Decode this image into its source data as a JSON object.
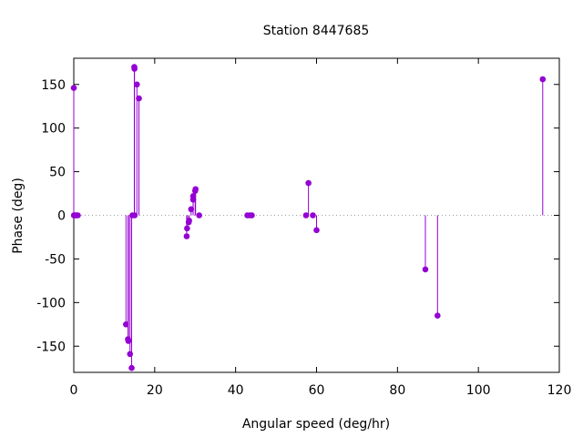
{
  "chart_data": {
    "type": "scatter",
    "style": "impulses-with-points",
    "title": "Station 8447685",
    "xlabel": "Angular speed (deg/hr)",
    "ylabel": "Phase (deg)",
    "xlim": [
      0,
      120
    ],
    "ylim": [
      -180,
      180
    ],
    "xticks": [
      0,
      20,
      40,
      60,
      80,
      100,
      120
    ],
    "yticks": [
      -150,
      -100,
      -50,
      0,
      50,
      100,
      150
    ],
    "zero_line": true,
    "grid": false,
    "legend": "none",
    "color": "#9400d3",
    "series": [
      {
        "points": [
          {
            "x": 0.0,
            "y": 146
          },
          {
            "x": 0.04,
            "y": 0
          },
          {
            "x": 0.08,
            "y": 0
          },
          {
            "x": 0.5,
            "y": 0
          },
          {
            "x": 0.6,
            "y": 0
          },
          {
            "x": 1.0,
            "y": 0
          },
          {
            "x": 12.9,
            "y": -125
          },
          {
            "x": 13.4,
            "y": -142
          },
          {
            "x": 13.5,
            "y": -144
          },
          {
            "x": 13.9,
            "y": -159
          },
          {
            "x": 14.3,
            "y": -175
          },
          {
            "x": 14.5,
            "y": 0
          },
          {
            "x": 14.96,
            "y": 170
          },
          {
            "x": 15.0,
            "y": 168
          },
          {
            "x": 15.04,
            "y": 0
          },
          {
            "x": 15.6,
            "y": 150
          },
          {
            "x": 16.1,
            "y": 134
          },
          {
            "x": 27.9,
            "y": -24
          },
          {
            "x": 28.0,
            "y": -15
          },
          {
            "x": 28.4,
            "y": -8
          },
          {
            "x": 28.5,
            "y": -6
          },
          {
            "x": 29.0,
            "y": 7
          },
          {
            "x": 29.5,
            "y": 18
          },
          {
            "x": 29.5,
            "y": 22
          },
          {
            "x": 30.0,
            "y": 28
          },
          {
            "x": 30.1,
            "y": 30
          },
          {
            "x": 31.0,
            "y": 0
          },
          {
            "x": 42.9,
            "y": 0
          },
          {
            "x": 43.5,
            "y": 0
          },
          {
            "x": 44.0,
            "y": 0
          },
          {
            "x": 57.4,
            "y": 0
          },
          {
            "x": 58.0,
            "y": 37
          },
          {
            "x": 59.1,
            "y": 0
          },
          {
            "x": 60.0,
            "y": -17
          },
          {
            "x": 86.9,
            "y": -62
          },
          {
            "x": 89.9,
            "y": -115
          },
          {
            "x": 115.9,
            "y": 156
          }
        ]
      }
    ]
  }
}
